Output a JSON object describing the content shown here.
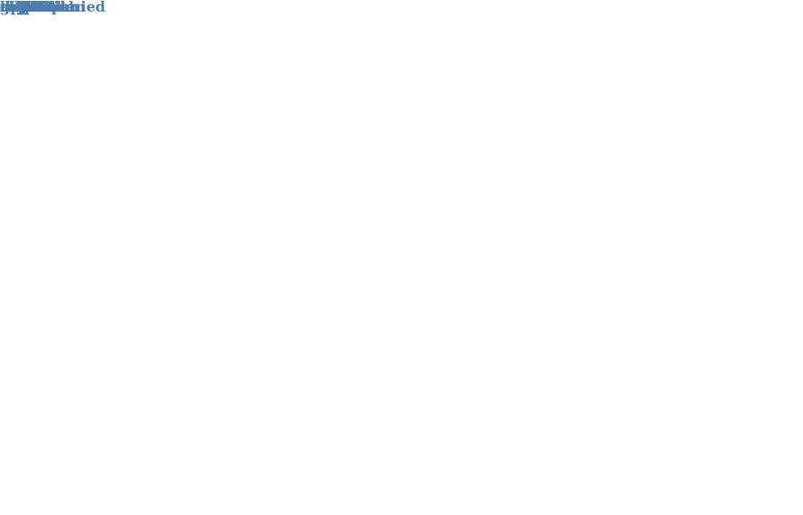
{
  "colors": {
    "word": "#4a7fb0",
    "background": "#ffffff"
  },
  "words": [
    {
      "id": "expression",
      "text": "expression"
    },
    {
      "id": "uptake",
      "text": "uptake"
    },
    {
      "id": "duodenum",
      "text": "duodenum"
    },
    {
      "id": "absorption",
      "text": "absorption"
    },
    {
      "id": "enterocytes",
      "text": "enterocytes"
    },
    {
      "id": "membrane",
      "text": "membrane"
    },
    {
      "id": "hepcidin",
      "text": "hepcidin"
    },
    {
      "id": "transporter",
      "text": "transporter"
    },
    {
      "id": "transport",
      "text": "transport"
    },
    {
      "id": "cadmium",
      "text": "cadmium"
    },
    {
      "id": "duodenal",
      "text": "duodenal"
    },
    {
      "id": "inflammation",
      "text": "inflammation"
    },
    {
      "id": "hypoxia",
      "text": "hypoxia"
    },
    {
      "id": "mouse",
      "text": "mouse"
    },
    {
      "id": "iron",
      "text": "iron"
    },
    {
      "id": "border",
      "text": "border"
    },
    {
      "id": "intestinal",
      "text": "intestinal"
    },
    {
      "id": "intestine",
      "text": "intestine"
    },
    {
      "id": "transfer",
      "text": "transfer"
    },
    {
      "id": "peptide",
      "text": "peptide"
    },
    {
      "id": "divalent",
      "text": "divalent"
    },
    {
      "id": "accompanied",
      "text": "accompanied"
    },
    {
      "id": "metal",
      "text": "metal"
    },
    {
      "id": "inducible",
      "text": "inducible"
    },
    {
      "id": "anemia",
      "text": "anemia"
    },
    {
      "id": "factor",
      "text": "factor"
    },
    {
      "id": "essential",
      "text": "essential"
    },
    {
      "id": "reduced",
      "text": "reduced"
    },
    {
      "id": "inhibition",
      "text": "inhibition"
    },
    {
      "id": "erythropoiesis",
      "text": "erythropoiesis"
    },
    {
      "id": "chronic",
      "text": "chronic"
    },
    {
      "id": "cell",
      "text": "cell"
    },
    {
      "id": "increased",
      "text": "increased"
    },
    {
      "id": "requirement",
      "text": "requirement"
    },
    {
      "id": "blood",
      "text": "blood"
    },
    {
      "id": "crypt",
      "text": "crypt"
    },
    {
      "id": "effect",
      "text": "effect"
    },
    {
      "id": "incubation",
      "text": "incubation"
    },
    {
      "id": "diet",
      "text": "diet"
    },
    {
      "id": "tissue",
      "text": "tissue"
    },
    {
      "id": "model",
      "text": "model"
    },
    {
      "id": "length",
      "text": "length"
    },
    {
      "id": "luminal",
      "text": "luminal"
    },
    {
      "id": "buffer",
      "text": "buffer"
    },
    {
      "id": "action",
      "text": "action"
    },
    {
      "id": "upper",
      "text": "upper"
    },
    {
      "id": "region",
      "text": "region"
    },
    {
      "id": "trace",
      "text": "trace"
    },
    {
      "id": "liver",
      "text": "liver"
    },
    {
      "id": "dog",
      "text": "dog"
    },
    {
      "id": "gene",
      "text": "gene"
    },
    {
      "id": "level",
      "text": "level"
    }
  ]
}
